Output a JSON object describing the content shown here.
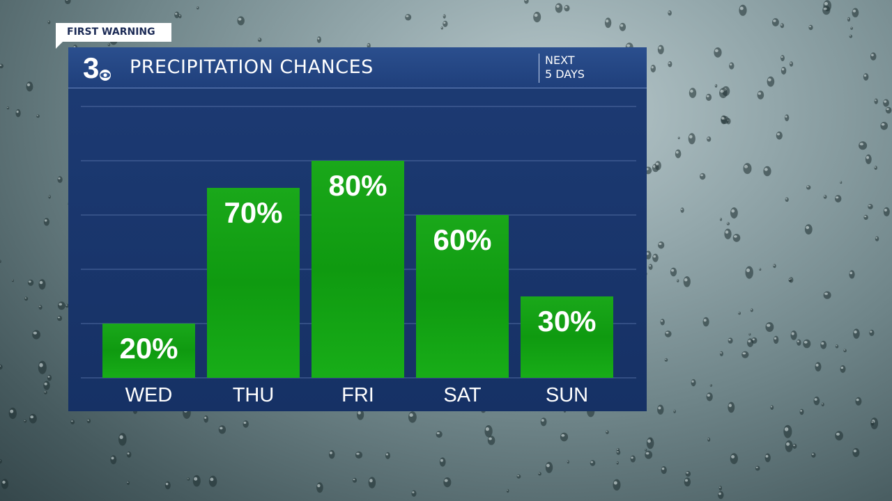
{
  "badge": {
    "text": "FIRST WARNING"
  },
  "header": {
    "logo_text": "3",
    "title": "PRECIPITATION CHANCES",
    "next_line1": "NEXT",
    "next_line2": "5 DAYS"
  },
  "chart_data": {
    "type": "bar",
    "title": "PRECIPITATION CHANCES",
    "categories": [
      "WED",
      "THU",
      "FRI",
      "SAT",
      "SUN"
    ],
    "values": [
      20,
      70,
      80,
      60,
      30
    ],
    "value_labels": [
      "20%",
      "70%",
      "80%",
      "60%",
      "30%"
    ],
    "ylim": [
      0,
      100
    ],
    "grid": true,
    "xlabel": "",
    "ylabel": ""
  },
  "colors": {
    "bar": "#18a818",
    "panel": "#1d3b74",
    "header": "#2b4f8e"
  }
}
